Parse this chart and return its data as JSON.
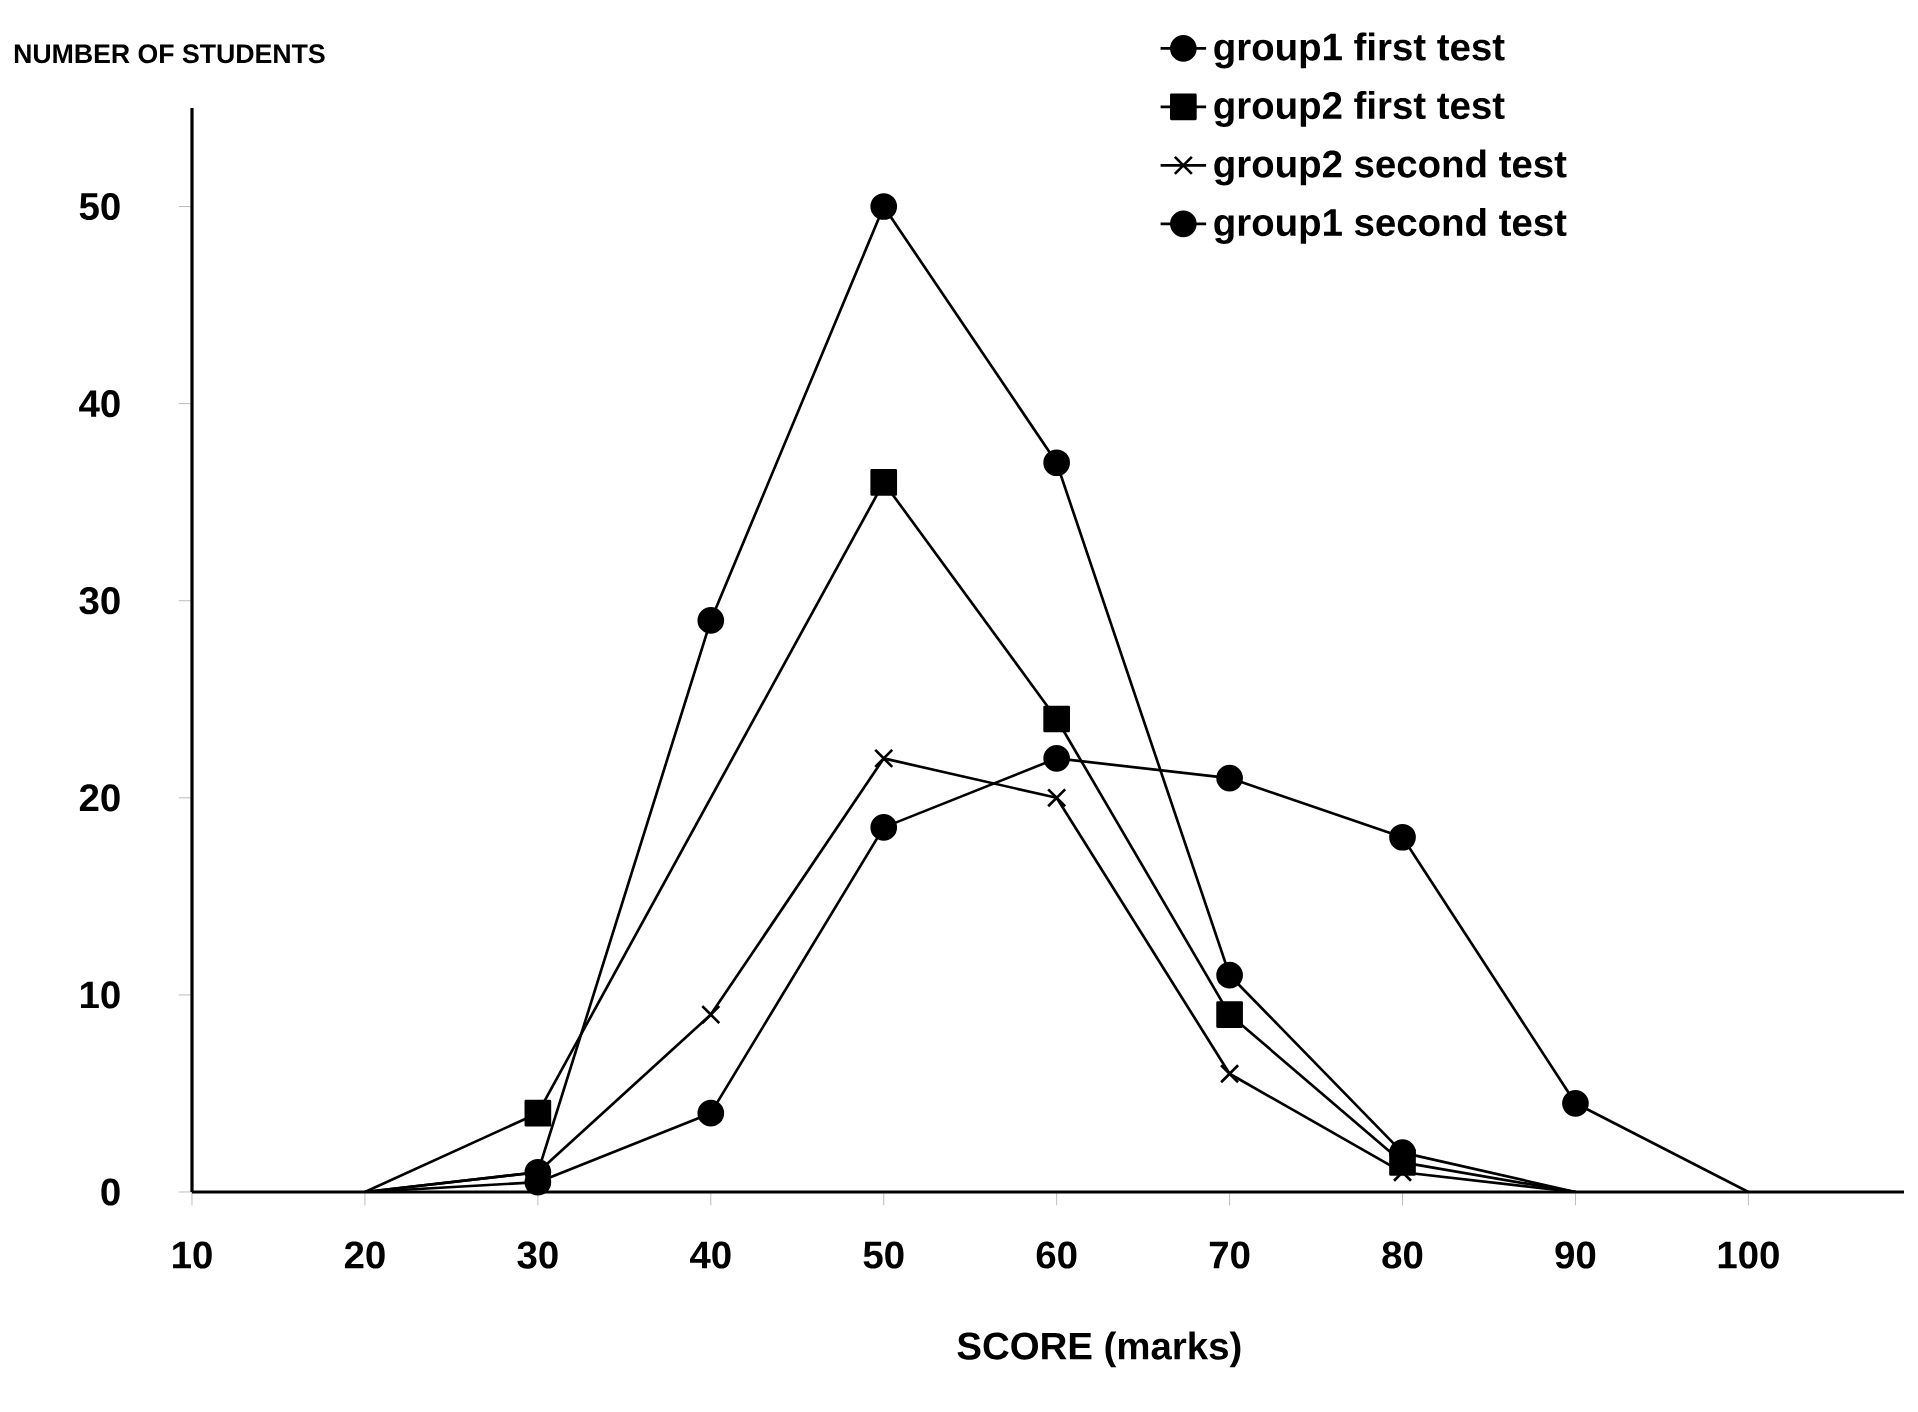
{
  "chart_data": {
    "type": "line",
    "xlabel": "SCORE (marks)",
    "ylabel": "NUMBER OF STUDENTS",
    "xlim": [
      10,
      109
    ],
    "ylim": [
      0,
      55
    ],
    "xticks": [
      10,
      20,
      30,
      40,
      50,
      60,
      70,
      80,
      90,
      100
    ],
    "yticks": [
      0,
      10,
      20,
      30,
      40,
      50
    ],
    "legend": "top right",
    "series": [
      {
        "name": "group1    first  test",
        "color": "#000000",
        "marker": "circle",
        "x": [
          20,
          30,
          40,
          50,
          60,
          70,
          80,
          90
        ],
        "values": [
          0,
          1,
          29,
          50,
          37,
          11,
          2,
          0
        ]
      },
      {
        "name": "group2    first  test",
        "color": "#000000",
        "marker": "square",
        "x": [
          20,
          30,
          50,
          60,
          70,
          80,
          90
        ],
        "values": [
          0,
          4,
          36,
          24,
          9,
          1.5,
          0
        ]
      },
      {
        "name": "group2    second test",
        "color": "#000000",
        "marker": "cross",
        "x": [
          20,
          30,
          40,
          50,
          60,
          70,
          80,
          90
        ],
        "values": [
          0,
          1,
          9,
          22,
          20,
          6,
          1,
          0
        ]
      },
      {
        "name": "group1   second test",
        "color": "#000000",
        "marker": "circle",
        "x": [
          20,
          30,
          40,
          50,
          60,
          70,
          80,
          90,
          100
        ],
        "values": [
          0,
          0.5,
          4,
          18.5,
          22,
          21,
          18,
          4.5,
          0
        ]
      }
    ]
  }
}
